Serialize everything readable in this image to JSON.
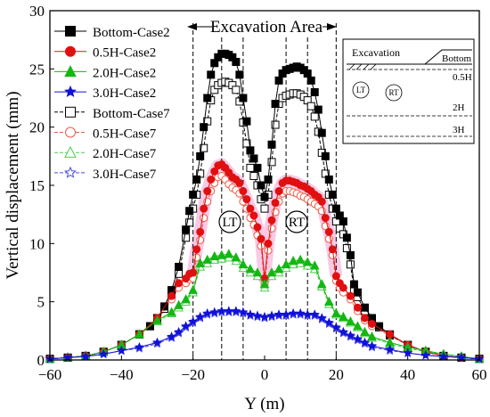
{
  "chart_data": {
    "type": "line",
    "xlabel": "Y (m)",
    "ylabel": "Vertical displacement (mm)",
    "xlim": [
      -60,
      60
    ],
    "ylim": [
      0,
      30
    ],
    "xticks": [
      -60,
      -40,
      -20,
      0,
      20,
      40,
      60
    ],
    "yticks": [
      0,
      5,
      10,
      15,
      20,
      25,
      30
    ],
    "grid": false,
    "legend_position": "top-left",
    "vlines": [
      -20,
      -12,
      -6,
      6,
      12,
      20
    ],
    "excavation_label": "Excavation Area",
    "tunnel_labels": [
      {
        "text": "LT",
        "x": -9,
        "y": 11.8
      },
      {
        "text": "RT",
        "x": 9,
        "y": 11.8
      }
    ],
    "inset": {
      "excavation": "Excavation",
      "bottom": "Bottom",
      "lt": "LT",
      "rt": "RT",
      "layers": [
        "0.5H",
        "2H",
        "3H"
      ]
    },
    "series": [
      {
        "name": "Bottom-Case2",
        "color": "#000000",
        "marker": "square",
        "filled": true,
        "dashed": false,
        "x": [
          -60,
          -55,
          -50,
          -45,
          -40,
          -35,
          -32,
          -30,
          -28,
          -26,
          -24,
          -22,
          -21,
          -20,
          -19,
          -18,
          -17,
          -16,
          -15,
          -14,
          -13,
          -12,
          -11,
          -10,
          -9,
          -8,
          -7,
          -6,
          -5,
          -4,
          -3,
          -2,
          -1,
          0,
          1,
          2,
          3,
          4,
          5,
          6,
          7,
          8,
          9,
          10,
          11,
          12,
          13,
          14,
          15,
          16,
          17,
          18,
          19,
          20,
          21,
          22,
          23,
          24,
          25,
          26,
          28,
          30,
          32,
          35,
          40,
          45,
          50,
          55,
          60
        ],
        "y": [
          0.1,
          0.2,
          0.35,
          0.7,
          1.3,
          2.2,
          2.9,
          3.6,
          4.6,
          6.0,
          8.0,
          11.2,
          12.8,
          14.2,
          15.5,
          17.5,
          20.0,
          22.5,
          24.5,
          25.5,
          26.0,
          26.3,
          26.3,
          26.2,
          26.0,
          25.6,
          24.5,
          22.5,
          20.5,
          18.0,
          17.3,
          16.5,
          15.0,
          14.0,
          15.5,
          18.5,
          22.0,
          24.0,
          24.6,
          24.9,
          25.0,
          25.1,
          25.2,
          25.1,
          24.9,
          24.6,
          24.0,
          23.0,
          21.5,
          19.5,
          17.5,
          15.5,
          14.2,
          13.0,
          12.4,
          11.9,
          10.5,
          9.0,
          6.5,
          5.8,
          4.5,
          3.6,
          2.9,
          2.2,
          1.3,
          0.7,
          0.35,
          0.2,
          0.1
        ]
      },
      {
        "name": "0.5H-Case2",
        "color": "#e01010",
        "marker": "circle",
        "filled": true,
        "dashed": false,
        "x": [
          -60,
          -55,
          -50,
          -45,
          -40,
          -35,
          -30,
          -26,
          -24,
          -22,
          -21,
          -20,
          -19,
          -18,
          -17,
          -16,
          -15,
          -14,
          -13,
          -12,
          -11,
          -10,
          -9,
          -8,
          -7,
          -6,
          -5,
          -4,
          -3,
          -2,
          -1,
          0,
          1,
          2,
          3,
          4,
          5,
          6,
          7,
          8,
          9,
          10,
          11,
          12,
          13,
          14,
          15,
          16,
          17,
          18,
          19,
          20,
          21,
          22,
          24,
          26,
          28,
          30,
          35,
          40,
          45,
          50,
          55,
          60
        ],
        "y": [
          0.1,
          0.2,
          0.35,
          0.7,
          1.3,
          2.2,
          3.6,
          5.5,
          6.6,
          7.0,
          7.4,
          7.5,
          9.5,
          11.0,
          13.0,
          14.5,
          15.5,
          16.2,
          16.7,
          16.8,
          16.5,
          16.1,
          15.7,
          15.5,
          15.2,
          14.5,
          13.8,
          13.0,
          12.4,
          11.4,
          10.4,
          7.0,
          10.0,
          12.0,
          13.5,
          14.5,
          15.2,
          15.4,
          15.4,
          15.3,
          15.2,
          15.0,
          14.9,
          14.7,
          14.5,
          14.2,
          14.0,
          13.6,
          12.2,
          11.0,
          9.5,
          7.2,
          6.6,
          6.2,
          5.5,
          4.5,
          3.6,
          3.1,
          2.2,
          1.3,
          0.7,
          0.35,
          0.2,
          0.1
        ]
      },
      {
        "name": "2.0H-Case2",
        "color": "#12b812",
        "marker": "triangle",
        "filled": true,
        "dashed": false,
        "x": [
          -60,
          -55,
          -50,
          -45,
          -40,
          -35,
          -30,
          -26,
          -24,
          -22,
          -20,
          -18,
          -16,
          -14,
          -12,
          -10,
          -8,
          -6,
          -4,
          -2,
          0,
          2,
          4,
          6,
          8,
          10,
          12,
          14,
          16,
          18,
          20,
          22,
          24,
          26,
          28,
          30,
          35,
          40,
          45,
          50,
          55,
          60
        ],
        "y": [
          0.1,
          0.2,
          0.35,
          0.7,
          1.3,
          2.2,
          3.4,
          4.1,
          4.7,
          5.2,
          6.0,
          8.3,
          8.6,
          8.9,
          9.0,
          9.1,
          8.8,
          8.2,
          7.8,
          7.5,
          6.5,
          7.5,
          7.8,
          8.2,
          8.5,
          8.6,
          8.4,
          8.1,
          6.5,
          5.0,
          4.0,
          3.7,
          3.3,
          2.9,
          2.4,
          2.0,
          1.5,
          1.1,
          0.8,
          0.5,
          0.3,
          0.1
        ]
      },
      {
        "name": "3.0H-Case2",
        "color": "#1010d8",
        "marker": "star",
        "filled": true,
        "dashed": false,
        "x": [
          -60,
          -55,
          -50,
          -45,
          -40,
          -35,
          -30,
          -26,
          -24,
          -22,
          -20,
          -18,
          -16,
          -14,
          -12,
          -10,
          -8,
          -6,
          -4,
          -2,
          0,
          2,
          4,
          6,
          8,
          10,
          12,
          14,
          16,
          18,
          20,
          22,
          24,
          26,
          28,
          30,
          35,
          40,
          45,
          50,
          55,
          60
        ],
        "y": [
          0.1,
          0.2,
          0.3,
          0.5,
          0.8,
          1.1,
          1.5,
          2.0,
          2.4,
          2.9,
          3.3,
          3.7,
          4.0,
          4.1,
          4.2,
          4.2,
          4.2,
          4.1,
          3.9,
          3.8,
          3.7,
          3.8,
          3.9,
          3.9,
          4.0,
          4.0,
          3.9,
          3.9,
          3.6,
          3.2,
          2.8,
          2.4,
          2.1,
          1.8,
          1.5,
          1.2,
          0.9,
          0.6,
          0.4,
          0.3,
          0.2,
          0.1
        ]
      },
      {
        "name": "Bottom-Case7",
        "color": "#000000",
        "marker": "square",
        "filled": false,
        "dashed": true,
        "x": [
          -60,
          -55,
          -50,
          -45,
          -40,
          -35,
          -32,
          -30,
          -28,
          -26,
          -24,
          -22,
          -21,
          -20,
          -19,
          -18,
          -17,
          -16,
          -15,
          -14,
          -13,
          -12,
          -11,
          -10,
          -9,
          -8,
          -7,
          -6,
          -5,
          -4,
          -3,
          -2,
          -1,
          0,
          1,
          2,
          3,
          4,
          5,
          6,
          7,
          8,
          9,
          10,
          11,
          12,
          13,
          14,
          15,
          16,
          17,
          18,
          19,
          20,
          21,
          22,
          23,
          24,
          25,
          26,
          28,
          30,
          32,
          35,
          40,
          45,
          50,
          55,
          60
        ],
        "y": [
          0.1,
          0.2,
          0.35,
          0.7,
          1.3,
          2.2,
          2.9,
          3.5,
          4.4,
          5.6,
          7.4,
          10.5,
          11.8,
          13.0,
          14.2,
          16.0,
          18.2,
          20.5,
          22.3,
          23.2,
          23.6,
          23.8,
          23.9,
          23.8,
          23.6,
          23.2,
          22.2,
          20.4,
          18.6,
          16.5,
          15.8,
          15.0,
          13.8,
          13.0,
          14.2,
          17.0,
          20.2,
          22.0,
          22.5,
          22.7,
          22.8,
          22.9,
          22.9,
          22.8,
          22.6,
          22.3,
          21.8,
          20.9,
          19.6,
          17.8,
          16.0,
          14.2,
          13.0,
          11.9,
          11.3,
          10.8,
          9.6,
          8.2,
          6.0,
          5.4,
          4.2,
          3.4,
          2.8,
          2.1,
          1.3,
          0.7,
          0.35,
          0.2,
          0.1
        ]
      },
      {
        "name": "0.5H-Case7",
        "color": "#ee5a45",
        "marker": "circle",
        "filled": false,
        "dashed": true,
        "x": [
          -60,
          -55,
          -50,
          -45,
          -40,
          -35,
          -30,
          -26,
          -24,
          -22,
          -21,
          -20,
          -19,
          -18,
          -17,
          -16,
          -15,
          -14,
          -13,
          -12,
          -11,
          -10,
          -9,
          -8,
          -7,
          -6,
          -5,
          -4,
          -3,
          -2,
          -1,
          0,
          1,
          2,
          3,
          4,
          5,
          6,
          7,
          8,
          9,
          10,
          11,
          12,
          13,
          14,
          15,
          16,
          17,
          18,
          19,
          20,
          21,
          22,
          24,
          26,
          28,
          30,
          35,
          40,
          45,
          50,
          55,
          60
        ],
        "y": [
          0.1,
          0.2,
          0.35,
          0.7,
          1.3,
          2.2,
          3.4,
          5.2,
          6.2,
          6.6,
          6.9,
          7.0,
          8.8,
          10.3,
          12.2,
          13.6,
          14.5,
          15.2,
          15.7,
          15.8,
          15.5,
          15.1,
          14.8,
          14.6,
          14.3,
          13.6,
          13.0,
          12.2,
          11.6,
          10.7,
          9.8,
          6.5,
          9.4,
          11.3,
          12.7,
          13.6,
          14.3,
          14.5,
          14.5,
          14.4,
          14.3,
          14.1,
          14.0,
          13.8,
          13.6,
          13.4,
          13.2,
          12.8,
          11.5,
          10.4,
          9.0,
          6.8,
          6.2,
          5.8,
          5.2,
          4.2,
          3.4,
          2.9,
          2.1,
          1.3,
          0.7,
          0.35,
          0.2,
          0.1
        ]
      },
      {
        "name": "2.0H-Case7",
        "color": "#4ad04a",
        "marker": "triangle",
        "filled": false,
        "dashed": true,
        "x": [
          -60,
          -55,
          -50,
          -45,
          -40,
          -35,
          -30,
          -26,
          -24,
          -22,
          -20,
          -18,
          -16,
          -14,
          -12,
          -10,
          -8,
          -6,
          -4,
          -2,
          0,
          2,
          4,
          6,
          8,
          10,
          12,
          14,
          16,
          18,
          20,
          22,
          24,
          26,
          28,
          30,
          35,
          40,
          45,
          50,
          55,
          60
        ],
        "y": [
          0.1,
          0.2,
          0.35,
          0.7,
          1.3,
          2.2,
          3.3,
          4.0,
          4.5,
          5.0,
          5.8,
          8.0,
          8.3,
          8.6,
          8.7,
          8.8,
          8.5,
          7.9,
          7.5,
          7.2,
          6.2,
          7.2,
          7.5,
          7.9,
          8.2,
          8.3,
          8.1,
          7.8,
          6.3,
          4.8,
          3.9,
          3.6,
          3.2,
          2.8,
          2.3,
          1.9,
          1.4,
          1.0,
          0.7,
          0.5,
          0.3,
          0.1
        ]
      },
      {
        "name": "3.0H-Case7",
        "color": "#4a4ae0",
        "marker": "star",
        "filled": false,
        "dashed": true,
        "x": [
          -60,
          -55,
          -50,
          -45,
          -40,
          -35,
          -30,
          -26,
          -24,
          -22,
          -20,
          -18,
          -16,
          -14,
          -12,
          -10,
          -8,
          -6,
          -4,
          -2,
          0,
          2,
          4,
          6,
          8,
          10,
          12,
          14,
          16,
          18,
          20,
          22,
          24,
          26,
          28,
          30,
          35,
          40,
          45,
          50,
          55,
          60
        ],
        "y": [
          0.1,
          0.2,
          0.3,
          0.5,
          0.8,
          1.0,
          1.4,
          1.9,
          2.3,
          2.8,
          3.2,
          3.6,
          3.9,
          4.0,
          4.1,
          4.1,
          4.1,
          4.0,
          3.8,
          3.7,
          3.6,
          3.7,
          3.8,
          3.8,
          3.9,
          3.9,
          3.8,
          3.8,
          3.5,
          3.1,
          2.7,
          2.3,
          2.0,
          1.7,
          1.4,
          1.1,
          0.8,
          0.6,
          0.4,
          0.3,
          0.2,
          0.1
        ]
      }
    ]
  }
}
